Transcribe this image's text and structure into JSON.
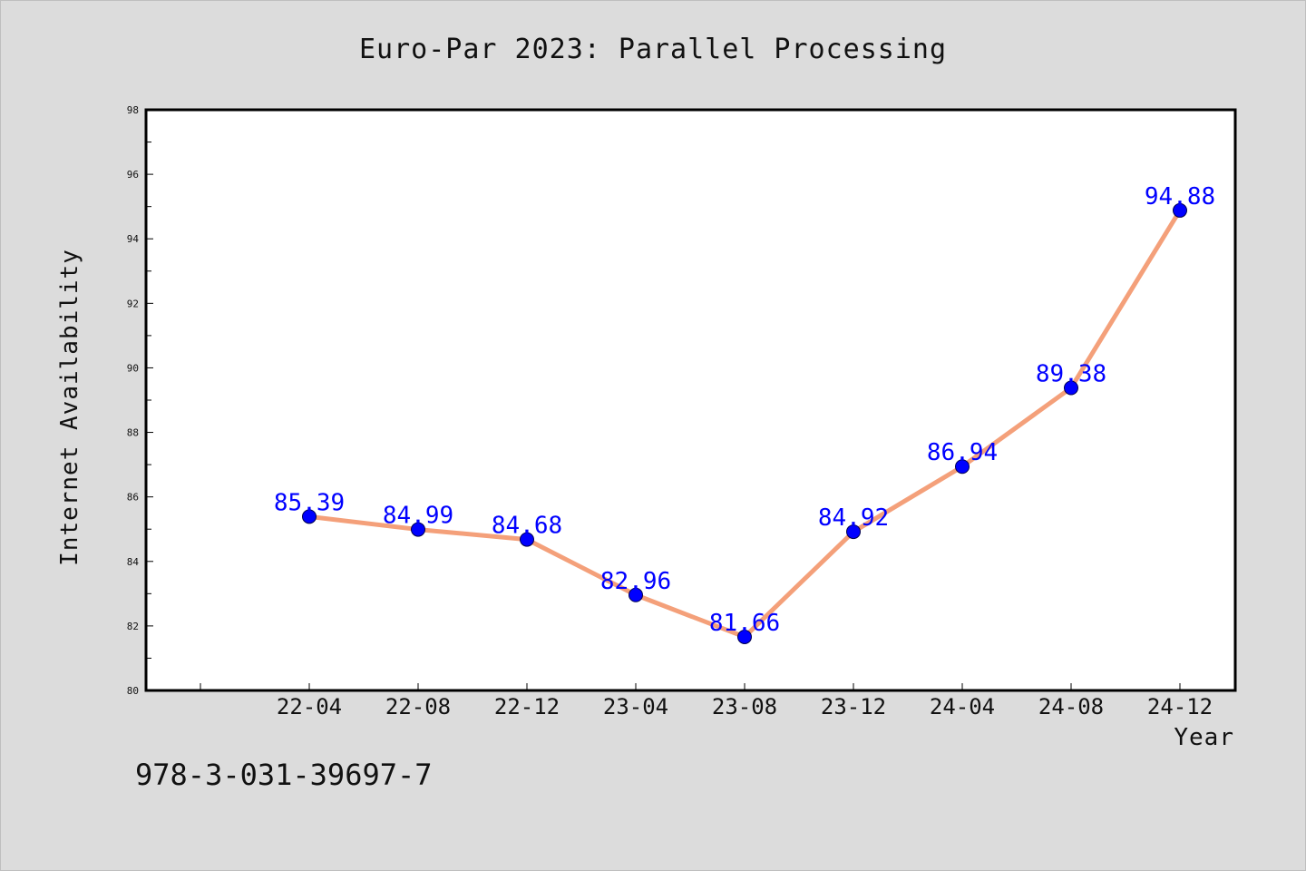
{
  "chart_data": {
    "type": "line",
    "title": "Euro-Par 2023: Parallel Processing",
    "xlabel": "Year",
    "ylabel": "Internet Availability",
    "categories": [
      "22-04",
      "22-08",
      "22-12",
      "23-04",
      "23-08",
      "23-12",
      "24-04",
      "24-08",
      "24-12"
    ],
    "series": [
      {
        "values": [
          85.39,
          84.99,
          84.68,
          82.96,
          81.66,
          84.92,
          86.94,
          89.38,
          94.88
        ],
        "data_labels": [
          "85.39",
          "84.99",
          "84.68",
          "82.96",
          "81.66",
          "84.92",
          "86.94",
          "89.38",
          "94.88"
        ]
      }
    ],
    "ylim": [
      80,
      98
    ],
    "y_ticks": [
      "80",
      "82",
      "84",
      "86",
      "88",
      "90",
      "92",
      "94",
      "96",
      "98"
    ],
    "grid": false,
    "line_color": "#f4a07a",
    "marker_color": "#0000ff",
    "label_color": "#0000ff",
    "background_color": "#dcdcdc",
    "plot_background_color": "#ffffff"
  },
  "footer": {
    "isbn": "978-3-031-39697-7"
  }
}
